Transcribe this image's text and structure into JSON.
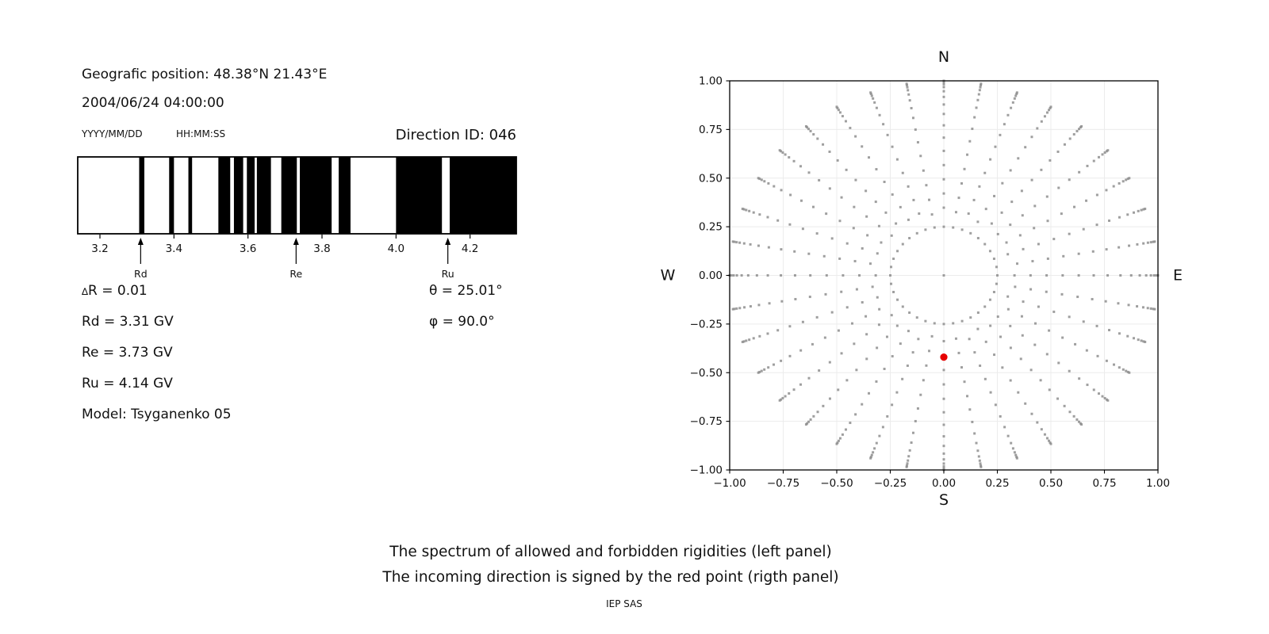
{
  "header": {
    "position": "Geografic position: 48.38°N 21.43°E",
    "datetime": "2004/06/24 04:00:00",
    "date_format": "YYYY/MM/DD",
    "time_format": "HH:MM:SS",
    "direction_id": "Direction ID: 046"
  },
  "parameters": {
    "delta_symbol": "∆",
    "delta_r_rest": "R = 0.01",
    "theta": "θ = 25.01°",
    "rd": "Rd = 3.31 GV",
    "phi": "φ = 90.0°",
    "re": "Re = 3.73 GV",
    "ru": "Ru = 4.14 GV",
    "model": "Model: Tsyganenko 05"
  },
  "caption": {
    "line1": "The spectrum of allowed and forbidden rigidities (left panel)",
    "line2": "The incoming direction is signed by the red point (rigth panel)",
    "credit": "IEP SAS"
  },
  "chart_data": [
    {
      "type": "bar",
      "name": "rigidity-spectrum",
      "description": "Barcode spectrum: black bands = allowed rigidities, white = forbidden",
      "xlim": [
        3.14,
        4.325
      ],
      "x_tick_values": [
        3.2,
        3.4,
        3.6,
        3.8,
        4.0,
        4.2
      ],
      "x_tick_labels": [
        "3.2",
        "3.4",
        "3.6",
        "3.8",
        "4.0",
        "4.2"
      ],
      "allowed_intervals_gv": [
        [
          3.306,
          3.32
        ],
        [
          3.387,
          3.4
        ],
        [
          3.439,
          3.449
        ],
        [
          3.52,
          3.552
        ],
        [
          3.562,
          3.587
        ],
        [
          3.597,
          3.618
        ],
        [
          3.624,
          3.662
        ],
        [
          3.69,
          3.732
        ],
        [
          3.74,
          3.826
        ],
        [
          3.845,
          3.877
        ],
        [
          4.0,
          4.124
        ],
        [
          4.145,
          4.325
        ]
      ],
      "markers": [
        {
          "label": "Rd",
          "gv": 3.31
        },
        {
          "label": "Re",
          "gv": 3.73
        },
        {
          "label": "Ru",
          "gv": 4.14
        }
      ],
      "bar_color": "#000000",
      "border_color": "#000000"
    },
    {
      "type": "scatter",
      "name": "asymptotic-directions",
      "description": "Grid of incoming directions (gray dots) with the selected direction as a red point",
      "xlim": [
        -1.0,
        1.0
      ],
      "ylim": [
        -1.0,
        1.0
      ],
      "x_tick_values": [
        -1.0,
        -0.75,
        -0.5,
        -0.25,
        0.0,
        0.25,
        0.5,
        0.75,
        1.0
      ],
      "x_tick_labels": [
        "−1.00",
        "−0.75",
        "−0.50",
        "−0.25",
        "0.00",
        "0.25",
        "0.50",
        "0.75",
        "1.00"
      ],
      "y_tick_values": [
        1.0,
        0.75,
        0.5,
        0.25,
        0.0,
        -0.25,
        -0.5,
        -0.75,
        -1.0
      ],
      "y_tick_labels": [
        "1.00",
        "0.75",
        "0.50",
        "0.25",
        "0.00",
        "−0.25",
        "−0.50",
        "−0.75",
        "−1.00"
      ],
      "compass": {
        "north": "N",
        "south": "S",
        "east": "E",
        "west": "W"
      },
      "grid": true,
      "spokes": {
        "count": 36,
        "angle_step_deg": 10,
        "ring_radius": 0.25,
        "spoke_radii": [
          0.33,
          0.405,
          0.48,
          0.555,
          0.63,
          0.7,
          0.765,
          0.825,
          0.875,
          0.915,
          0.945,
          0.967,
          0.982,
          0.993,
          1.0
        ],
        "center_dot": [
          0,
          0
        ]
      },
      "red_point": {
        "x": 0.0,
        "y": -0.42
      },
      "dot_color": "#8a8a8a",
      "red_color": "#e60000",
      "grid_color": "#ececec"
    }
  ]
}
